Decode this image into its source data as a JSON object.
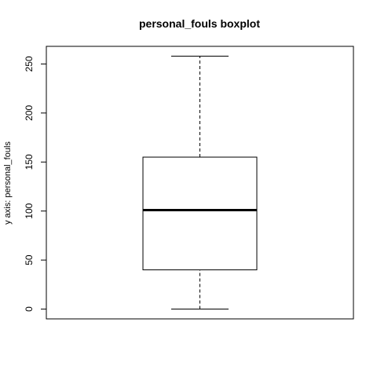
{
  "chart_data": {
    "type": "boxplot",
    "title": "personal_fouls boxplot",
    "xlabel": "",
    "ylabel": "y axis: personal_fouls",
    "ylim": [
      -10,
      268
    ],
    "yticks": [
      0,
      50,
      100,
      150,
      200,
      250
    ],
    "ytick_labels": [
      "0",
      "50",
      "100",
      "150",
      "200",
      "250"
    ],
    "grid": false,
    "stats": {
      "min": 0,
      "q1": 40,
      "median": 101,
      "q3": 155,
      "max": 258
    }
  }
}
